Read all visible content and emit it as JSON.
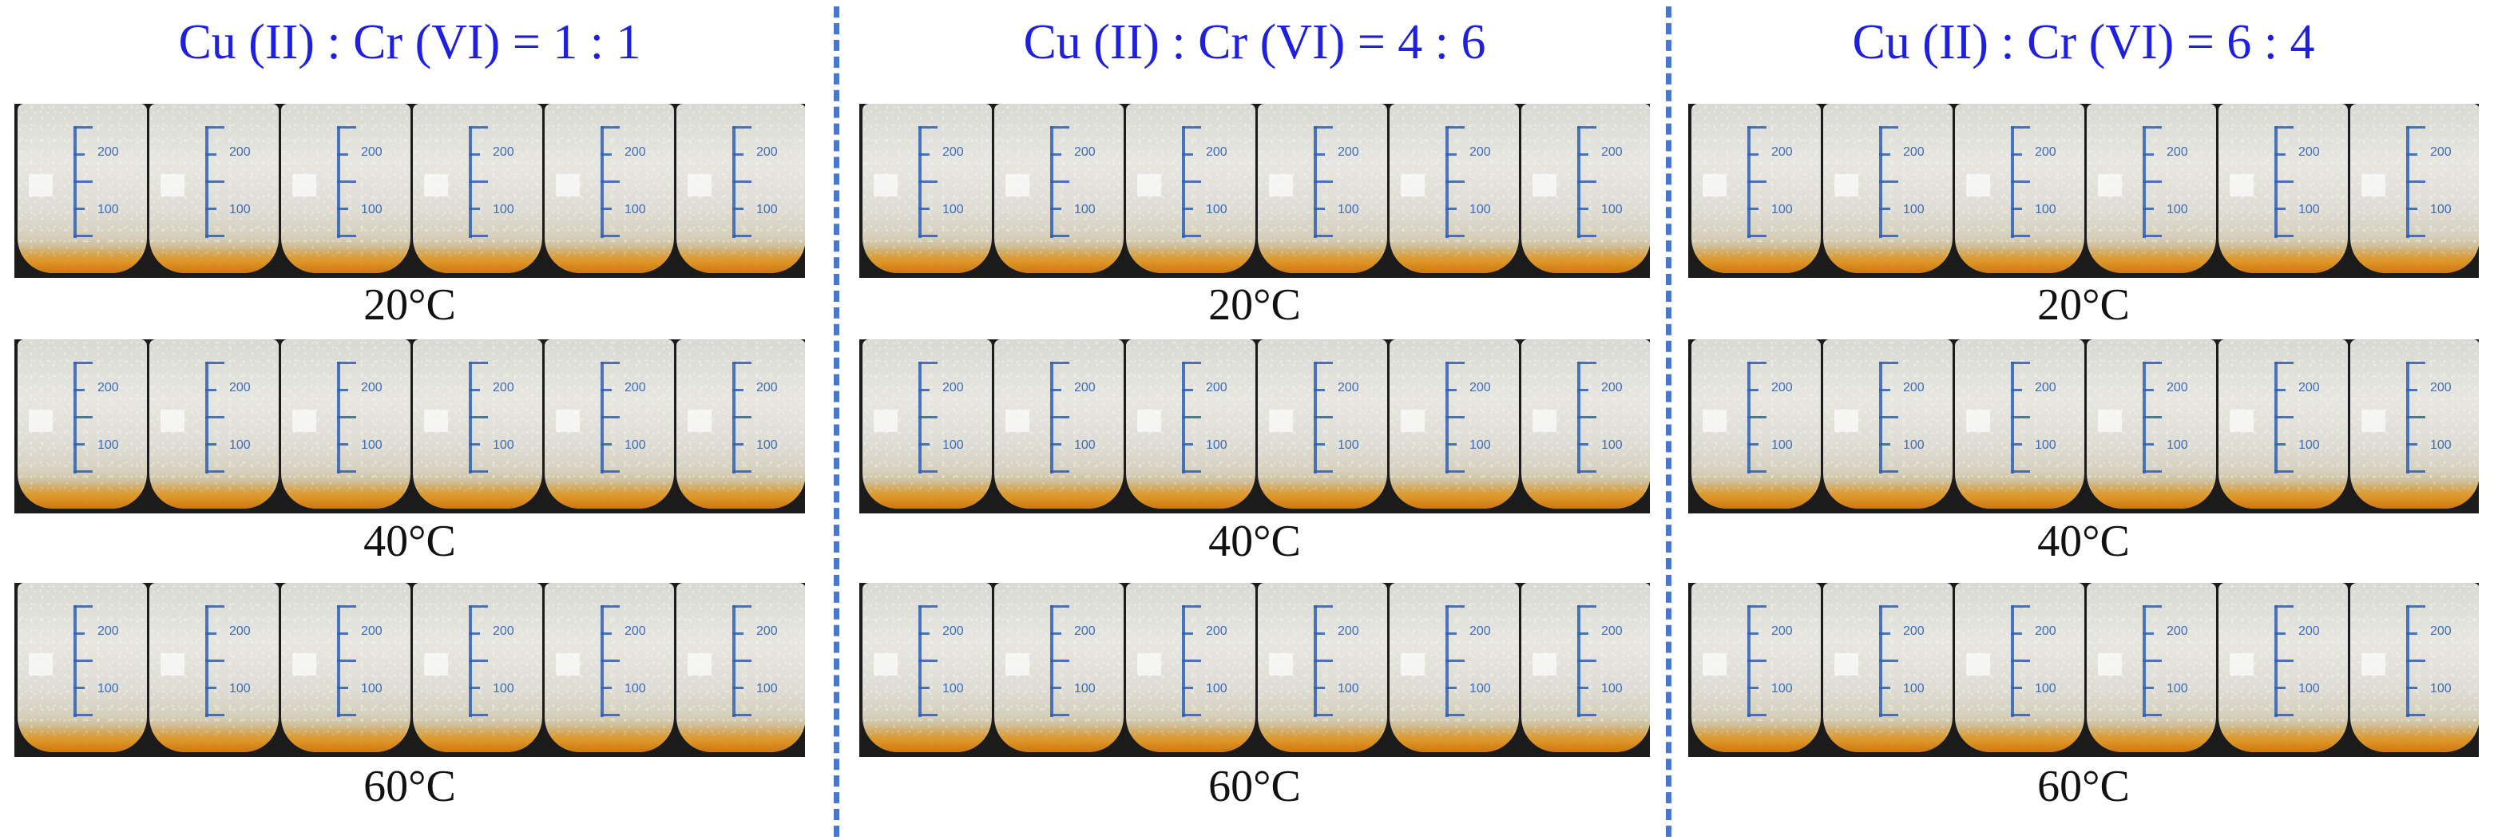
{
  "accent_colors": {
    "title": "#1f1fe0",
    "divider": "#4a78c8",
    "scale": "#2d5fb4"
  },
  "panels": [
    {
      "title": "Cu (II) : Cr (VI) = 1 : 1",
      "rows": [
        {
          "temperature": "20°C",
          "scale_labels": [
            "200",
            "100"
          ]
        },
        {
          "temperature": "40°C",
          "scale_labels": [
            "200",
            "100"
          ]
        },
        {
          "temperature": "60°C",
          "scale_labels": [
            "200",
            "100"
          ]
        }
      ]
    },
    {
      "title": "Cu (II) : Cr (VI) = 4 : 6",
      "rows": [
        {
          "temperature": "20°C",
          "scale_labels": [
            "200",
            "100"
          ]
        },
        {
          "temperature": "40°C",
          "scale_labels": [
            "200",
            "100"
          ]
        },
        {
          "temperature": "60°C",
          "scale_labels": [
            "200",
            "100"
          ]
        }
      ]
    },
    {
      "title": "Cu (II) : Cr (VI) = 6 : 4",
      "rows": [
        {
          "temperature": "20°C",
          "scale_labels": [
            "200",
            "100"
          ]
        },
        {
          "temperature": "40°C",
          "scale_labels": [
            "200",
            "100"
          ]
        },
        {
          "temperature": "60°C",
          "scale_labels": [
            "200",
            "100"
          ]
        }
      ]
    }
  ]
}
